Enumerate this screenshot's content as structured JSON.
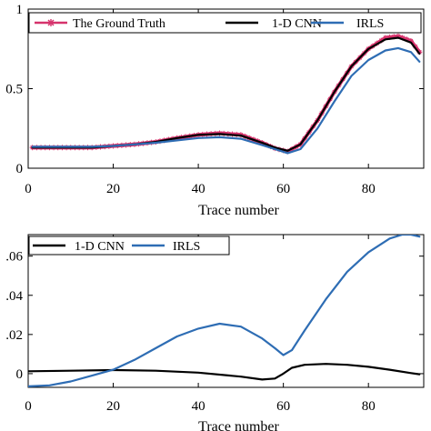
{
  "chart_data": [
    {
      "type": "line",
      "xlabel": "Trace number",
      "ylabel": "",
      "xlim": [
        0,
        93
      ],
      "ylim": [
        0,
        1
      ],
      "xticks": [
        0,
        20,
        40,
        60,
        80
      ],
      "xtick_labels": [
        "0",
        "20",
        "40",
        "60",
        "80"
      ],
      "yticks": [
        0,
        0.5,
        1
      ],
      "ytick_labels": [
        "0",
        "0.5",
        "1"
      ],
      "legend_position": "top",
      "grid": false,
      "series": [
        {
          "name": "The Ground Truth",
          "color": "#d6336c",
          "marker": "asterisk",
          "x": [
            1,
            5,
            10,
            15,
            20,
            25,
            30,
            35,
            40,
            45,
            50,
            55,
            58,
            61,
            64,
            68,
            72,
            76,
            80,
            84,
            87,
            90,
            92
          ],
          "y": [
            0.13,
            0.13,
            0.13,
            0.13,
            0.14,
            0.15,
            0.165,
            0.19,
            0.21,
            0.22,
            0.21,
            0.16,
            0.125,
            0.105,
            0.15,
            0.3,
            0.48,
            0.64,
            0.75,
            0.82,
            0.83,
            0.8,
            0.73
          ]
        },
        {
          "name": "1-D CNN",
          "color": "#000000",
          "x": [
            1,
            5,
            10,
            15,
            20,
            25,
            30,
            35,
            40,
            45,
            50,
            55,
            58,
            61,
            64,
            68,
            72,
            76,
            80,
            84,
            87,
            90,
            92
          ],
          "y": [
            0.13,
            0.13,
            0.13,
            0.13,
            0.14,
            0.15,
            0.165,
            0.19,
            0.21,
            0.215,
            0.205,
            0.16,
            0.13,
            0.11,
            0.15,
            0.3,
            0.48,
            0.64,
            0.75,
            0.81,
            0.82,
            0.79,
            0.72
          ]
        },
        {
          "name": "IRLS",
          "color": "#2e6db4",
          "x": [
            1,
            5,
            10,
            15,
            20,
            25,
            30,
            35,
            40,
            45,
            50,
            55,
            58,
            61,
            64,
            68,
            72,
            76,
            80,
            84,
            87,
            90,
            92
          ],
          "y": [
            0.135,
            0.135,
            0.135,
            0.135,
            0.14,
            0.15,
            0.16,
            0.175,
            0.19,
            0.195,
            0.185,
            0.145,
            0.12,
            0.095,
            0.12,
            0.25,
            0.42,
            0.58,
            0.68,
            0.74,
            0.755,
            0.73,
            0.67
          ]
        }
      ]
    },
    {
      "type": "line",
      "xlabel": "Trace number",
      "ylabel": "",
      "xlim": [
        0,
        93
      ],
      "ylim": [
        -0.007,
        0.071
      ],
      "xticks": [
        0,
        20,
        40,
        60,
        80
      ],
      "xtick_labels": [
        "0",
        "20",
        "40",
        "60",
        "80"
      ],
      "yticks": [
        0,
        0.02,
        0.04,
        0.06
      ],
      "ytick_labels": [
        "0",
        ".02",
        ".04",
        ".06"
      ],
      "legend_position": "top-left",
      "grid": false,
      "series": [
        {
          "name": "1-D CNN",
          "color": "#000000",
          "x": [
            0,
            10,
            20,
            30,
            40,
            50,
            55,
            58,
            60,
            62,
            65,
            70,
            75,
            80,
            85,
            90,
            92
          ],
          "y": [
            0.0012,
            0.0015,
            0.0018,
            0.0015,
            0.0005,
            -0.0015,
            -0.003,
            -0.0025,
            0.0,
            0.003,
            0.0045,
            0.005,
            0.0045,
            0.0035,
            0.002,
            0.0003,
            -0.0003
          ]
        },
        {
          "name": "IRLS",
          "color": "#2e6db4",
          "x": [
            0,
            5,
            10,
            15,
            20,
            25,
            30,
            35,
            40,
            45,
            50,
            55,
            58,
            60,
            62,
            65,
            70,
            75,
            80,
            85,
            88,
            90,
            92
          ],
          "y": [
            -0.0065,
            -0.006,
            -0.004,
            -0.001,
            0.002,
            0.007,
            0.013,
            0.019,
            0.023,
            0.0255,
            0.024,
            0.018,
            0.013,
            0.0095,
            0.012,
            0.022,
            0.038,
            0.052,
            0.062,
            0.069,
            0.071,
            0.071,
            0.07
          ]
        }
      ]
    }
  ]
}
